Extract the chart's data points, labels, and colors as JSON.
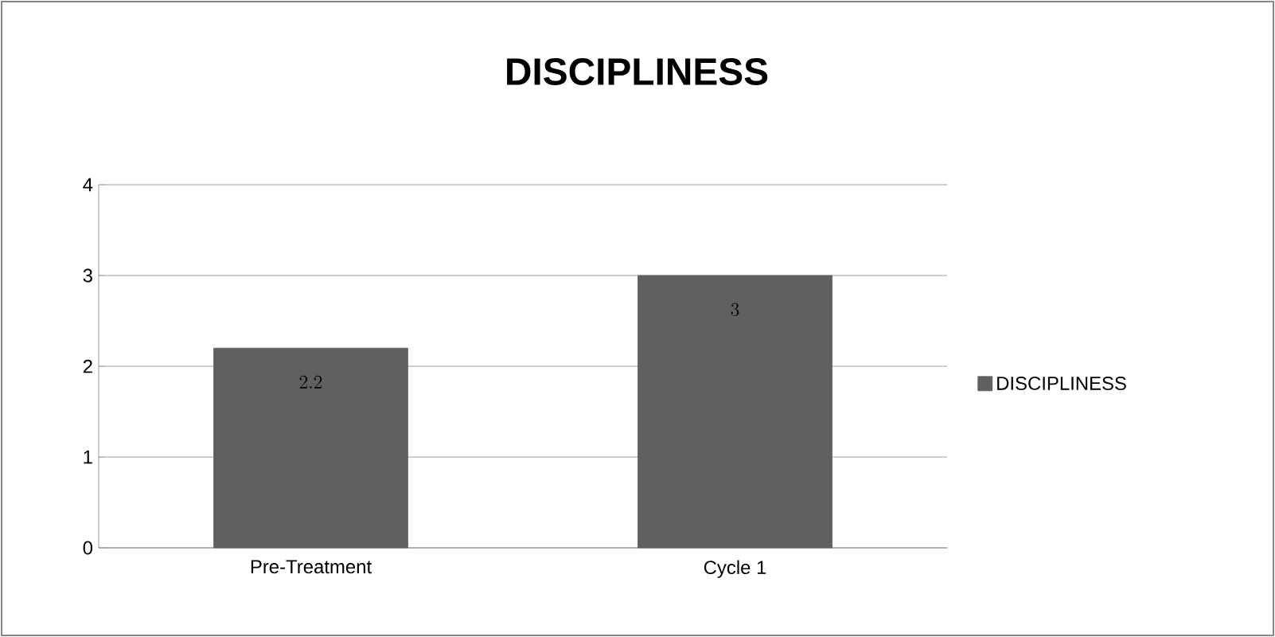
{
  "chart_data": {
    "type": "bar",
    "title": "DISCIPLINESS",
    "categories": [
      "Pre-Treatment",
      "Cycle 1"
    ],
    "series": [
      {
        "name": "DISCIPLINESS",
        "color": "#606060",
        "values": [
          2.2,
          3
        ]
      }
    ],
    "ylim": [
      0,
      4
    ],
    "yticks": [
      0,
      1,
      2,
      3,
      4
    ],
    "grid": "y",
    "legend": "right",
    "data_labels": true
  }
}
